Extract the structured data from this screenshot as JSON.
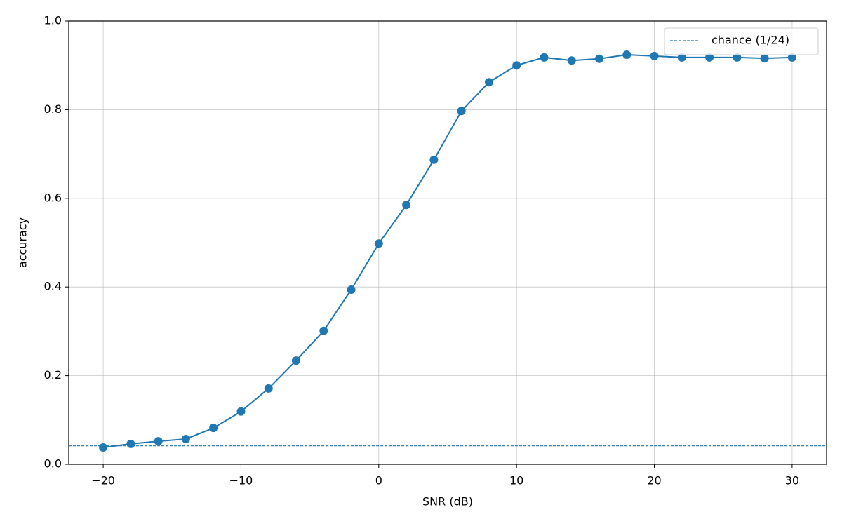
{
  "chart_data": {
    "type": "line",
    "x_label": "SNR (dB)",
    "y_label": "accuracy",
    "x": [
      -20,
      -18,
      -16,
      -14,
      -12,
      -10,
      -8,
      -6,
      -4,
      -2,
      0,
      2,
      4,
      6,
      8,
      10,
      12,
      14,
      16,
      18,
      20,
      22,
      24,
      26,
      28,
      30
    ],
    "values": [
      0.038,
      0.046,
      0.052,
      0.057,
      0.082,
      0.119,
      0.171,
      0.234,
      0.301,
      0.394,
      0.498,
      0.585,
      0.687,
      0.797,
      0.862,
      0.9,
      0.918,
      0.911,
      0.915,
      0.924,
      0.921,
      0.918,
      0.918,
      0.918,
      0.916,
      0.918
    ],
    "color": "#1f77b4",
    "marker": "circle",
    "reference_lines": [
      {
        "name": "chance (1/24)",
        "value": 0.041667,
        "color": "#1f77b4",
        "style": "dashed"
      }
    ],
    "xlim": [
      -22.5,
      32.5
    ],
    "ylim": [
      0,
      1
    ],
    "xticks": [
      {
        "value": -20,
        "label": "−20"
      },
      {
        "value": -10,
        "label": "−10"
      },
      0,
      10,
      20,
      30
    ],
    "yticks": [
      {
        "value": 0,
        "label": "0.0"
      },
      0.2,
      0.4,
      0.6,
      0.8,
      {
        "value": 1,
        "label": "1.0"
      }
    ],
    "grid": true,
    "legend": "upper right"
  }
}
